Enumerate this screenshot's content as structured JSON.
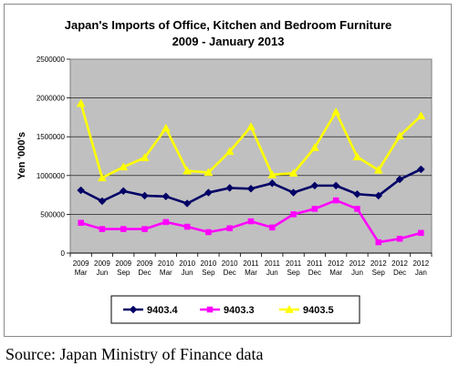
{
  "chart_data": {
    "type": "line",
    "title": "Japan's Imports of Office, Kitchen and Bedroom Furniture",
    "subtitle": "2009 - January 2013",
    "xlabel": "",
    "ylabel": "Yen '000's",
    "ylim": [
      0,
      2500000
    ],
    "yticks": [
      "0",
      "500000",
      "1000000",
      "1500000",
      "2000000",
      "2500000"
    ],
    "categories": [
      [
        "2009",
        "Mar"
      ],
      [
        "2009",
        "Jun"
      ],
      [
        "2009",
        "Sep"
      ],
      [
        "2009",
        "Dec"
      ],
      [
        "2010",
        "Mar"
      ],
      [
        "2010",
        "Jun"
      ],
      [
        "2010",
        "Sep"
      ],
      [
        "2010",
        "Dec"
      ],
      [
        "2011",
        "Mar"
      ],
      [
        "2011",
        "Jun"
      ],
      [
        "2011",
        "Sep"
      ],
      [
        "2011",
        "Dec"
      ],
      [
        "2012",
        "Mar"
      ],
      [
        "2012",
        "Jun"
      ],
      [
        "2012",
        "Sep"
      ],
      [
        "2012",
        "Dec"
      ],
      [
        "2012",
        "Jan"
      ]
    ],
    "grid": true,
    "legend_position": "bottom",
    "series": [
      {
        "name": "9403.4",
        "color": "#000066",
        "marker": "diamond",
        "values": [
          810000,
          670000,
          800000,
          740000,
          730000,
          640000,
          780000,
          840000,
          830000,
          900000,
          780000,
          870000,
          870000,
          760000,
          740000,
          950000,
          1080000
        ]
      },
      {
        "name": "9403.3",
        "color": "#ff00ff",
        "marker": "square",
        "values": [
          390000,
          310000,
          310000,
          310000,
          400000,
          340000,
          270000,
          320000,
          410000,
          330000,
          500000,
          570000,
          680000,
          570000,
          140000,
          185000,
          260000
        ]
      },
      {
        "name": "9403.5",
        "color": "#ffff00",
        "marker": "triangle",
        "values": [
          1930000,
          970000,
          1110000,
          1230000,
          1610000,
          1060000,
          1040000,
          1310000,
          1630000,
          1010000,
          1030000,
          1360000,
          1820000,
          1240000,
          1070000,
          1510000,
          1770000
        ]
      }
    ]
  },
  "source_text": "Source: Japan Ministry of Finance data"
}
